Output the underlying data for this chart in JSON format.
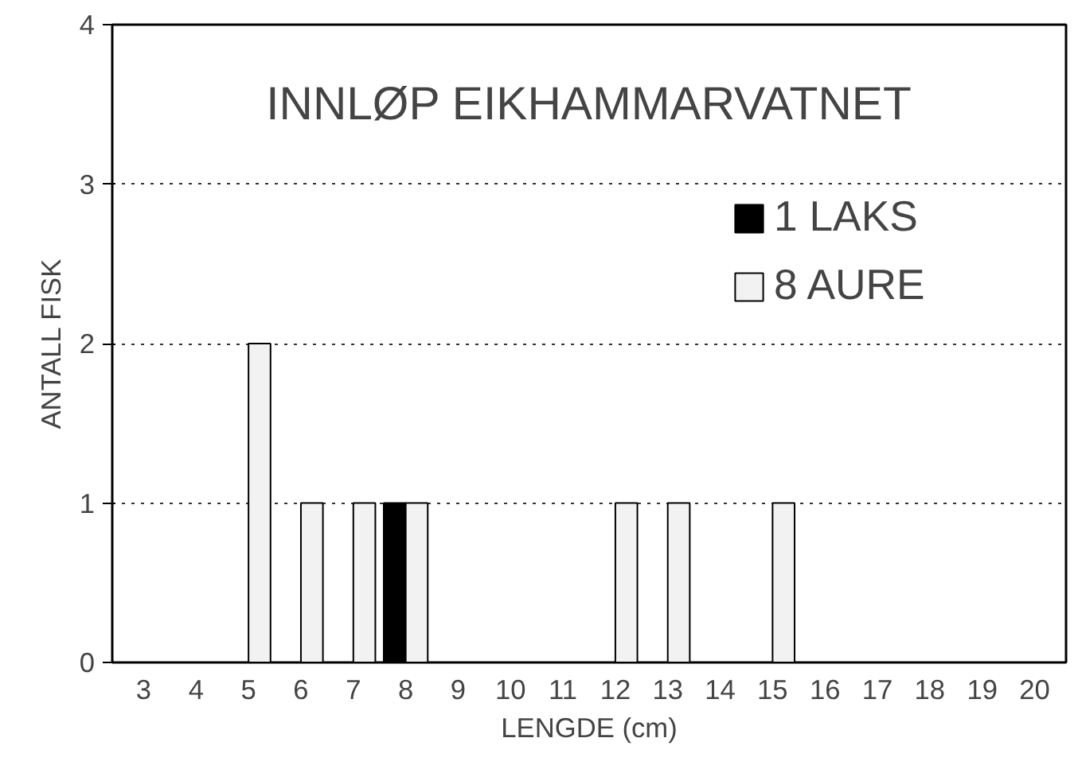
{
  "chart_data": {
    "type": "bar",
    "title": "INNLØP EIKHAMMARVATNET",
    "xlabel": "LENGDE (cm)",
    "ylabel": "ANTALL FISK",
    "categories": [
      "3",
      "4",
      "5",
      "6",
      "7",
      "8",
      "9",
      "10",
      "11",
      "12",
      "13",
      "14",
      "15",
      "16",
      "17",
      "18",
      "19",
      "20"
    ],
    "series": [
      {
        "name": "1 LAKS",
        "color": "#000000",
        "values": [
          0,
          0,
          0,
          0,
          0,
          1,
          0,
          0,
          0,
          0,
          0,
          0,
          0,
          0,
          0,
          0,
          0,
          0
        ]
      },
      {
        "name": "8 AURE",
        "color": "#f2f2f2",
        "values": [
          0,
          0,
          2,
          1,
          1,
          1,
          0,
          0,
          0,
          1,
          1,
          0,
          1,
          0,
          0,
          0,
          0,
          0
        ]
      }
    ],
    "ylim": [
      0,
      4
    ],
    "yticks": [
      0,
      1,
      2,
      3,
      4
    ],
    "grid": "y",
    "legend": "top right"
  }
}
